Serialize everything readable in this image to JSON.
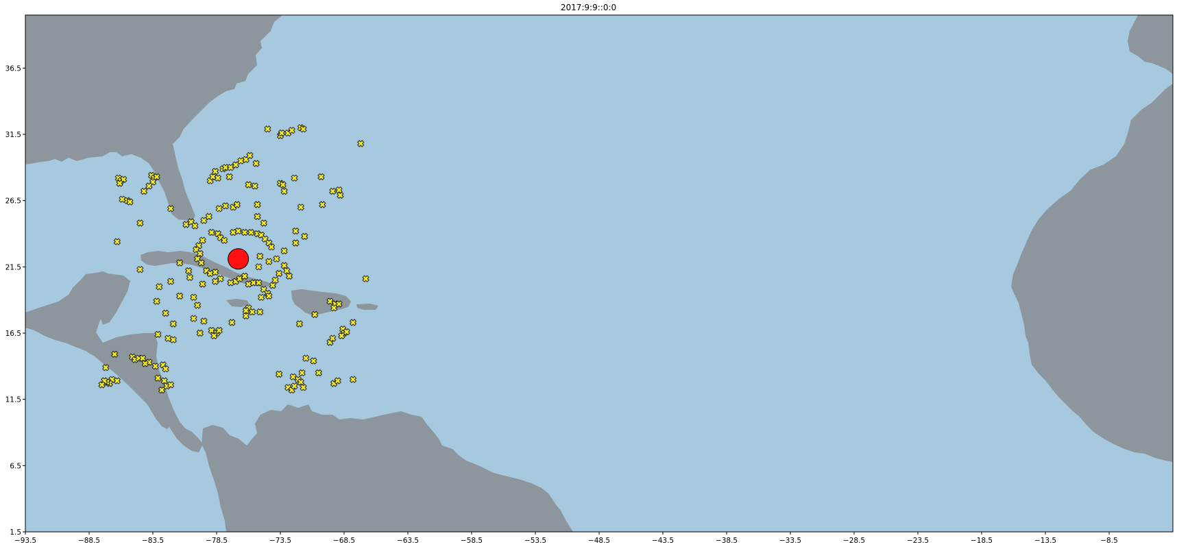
{
  "title": "2017:9:9::0:0",
  "colors": {
    "ocean": "#a6c9df",
    "land": "#8c969c",
    "marker_fill": "#f0ea2a",
    "marker_edge": "#222222",
    "storm": "#ff1111"
  },
  "chart_data": {
    "type": "scatter",
    "title": "2017:9:9::0:0",
    "xlabel": "",
    "ylabel": "",
    "xlim": [
      -93.5,
      -3.5
    ],
    "ylim": [
      1.5,
      40.5
    ],
    "x_ticks": [
      -93.5,
      -88.5,
      -83.5,
      -78.5,
      -73.5,
      -68.5,
      -63.5,
      -58.5,
      -53.5,
      -48.5,
      -43.5,
      -38.5,
      -33.5,
      -28.5,
      -23.5,
      -18.5,
      -13.5,
      -8.5
    ],
    "y_ticks": [
      1.5,
      6.5,
      11.5,
      16.5,
      21.5,
      26.5,
      31.5,
      36.5
    ],
    "grid": false,
    "storm_center": {
      "lon": -76.8,
      "lat": 22.1
    },
    "series": [
      {
        "marker": "x-filled",
        "points": [
          [
            -74.5,
            31.9
          ],
          [
            -73.5,
            31.4
          ],
          [
            -73.4,
            31.6
          ],
          [
            -72.9,
            31.6
          ],
          [
            -72.6,
            31.8
          ],
          [
            -71.9,
            32.0
          ],
          [
            -71.7,
            31.9
          ],
          [
            -67.2,
            30.8
          ],
          [
            -86.2,
            28.2
          ],
          [
            -86.0,
            28.0
          ],
          [
            -85.8,
            28.1
          ],
          [
            -86.1,
            27.8
          ],
          [
            -83.6,
            28.4
          ],
          [
            -83.4,
            28.2
          ],
          [
            -83.2,
            28.3
          ],
          [
            -83.5,
            27.9
          ],
          [
            -83.8,
            27.6
          ],
          [
            -84.2,
            27.2
          ],
          [
            -79.0,
            28.0
          ],
          [
            -78.8,
            28.3
          ],
          [
            -78.4,
            28.2
          ],
          [
            -78.6,
            28.7
          ],
          [
            -78.0,
            28.9
          ],
          [
            -77.8,
            29.0
          ],
          [
            -77.4,
            29.0
          ],
          [
            -77.0,
            29.2
          ],
          [
            -76.6,
            29.5
          ],
          [
            -76.2,
            29.6
          ],
          [
            -75.9,
            29.9
          ],
          [
            -75.4,
            29.3
          ],
          [
            -77.5,
            28.3
          ],
          [
            -76.0,
            27.7
          ],
          [
            -75.5,
            27.6
          ],
          [
            -73.5,
            27.8
          ],
          [
            -73.3,
            27.7
          ],
          [
            -73.2,
            27.2
          ],
          [
            -72.4,
            28.2
          ],
          [
            -70.3,
            28.3
          ],
          [
            -69.4,
            27.2
          ],
          [
            -68.9,
            27.3
          ],
          [
            -68.8,
            26.9
          ],
          [
            -85.9,
            26.6
          ],
          [
            -85.5,
            26.5
          ],
          [
            -85.3,
            26.4
          ],
          [
            -82.1,
            25.9
          ],
          [
            -79.5,
            25.0
          ],
          [
            -79.1,
            25.3
          ],
          [
            -78.3,
            25.9
          ],
          [
            -77.8,
            26.1
          ],
          [
            -77.2,
            26.0
          ],
          [
            -76.9,
            26.2
          ],
          [
            -75.3,
            26.2
          ],
          [
            -71.9,
            26.0
          ],
          [
            -70.2,
            26.2
          ],
          [
            -84.5,
            24.8
          ],
          [
            -80.9,
            24.7
          ],
          [
            -80.5,
            24.9
          ],
          [
            -80.2,
            24.6
          ],
          [
            -78.9,
            24.1
          ],
          [
            -78.4,
            24.0
          ],
          [
            -78.2,
            23.7
          ],
          [
            -77.9,
            23.5
          ],
          [
            -77.2,
            24.1
          ],
          [
            -76.8,
            24.2
          ],
          [
            -76.3,
            24.1
          ],
          [
            -75.8,
            24.1
          ],
          [
            -75.3,
            24.0
          ],
          [
            -75.0,
            23.9
          ],
          [
            -74.7,
            23.6
          ],
          [
            -74.4,
            23.3
          ],
          [
            -74.2,
            23.0
          ],
          [
            -75.3,
            25.3
          ],
          [
            -74.8,
            24.8
          ],
          [
            -72.3,
            24.2
          ],
          [
            -71.6,
            23.8
          ],
          [
            -72.3,
            23.3
          ],
          [
            -73.2,
            22.7
          ],
          [
            -73.8,
            22.1
          ],
          [
            -74.4,
            21.9
          ],
          [
            -75.1,
            22.3
          ],
          [
            -79.6,
            23.5
          ],
          [
            -79.9,
            23.1
          ],
          [
            -80.1,
            22.8
          ],
          [
            -79.8,
            22.5
          ],
          [
            -80.0,
            22.1
          ],
          [
            -79.7,
            21.8
          ],
          [
            -79.3,
            21.2
          ],
          [
            -79.0,
            21.0
          ],
          [
            -78.6,
            21.1
          ],
          [
            -78.2,
            20.6
          ],
          [
            -78.6,
            20.4
          ],
          [
            -77.4,
            20.3
          ],
          [
            -77.0,
            20.4
          ],
          [
            -76.7,
            20.6
          ],
          [
            -76.3,
            20.8
          ],
          [
            -76.0,
            20.2
          ],
          [
            -75.6,
            20.3
          ],
          [
            -75.2,
            20.3
          ],
          [
            -74.8,
            19.8
          ],
          [
            -74.5,
            19.5
          ],
          [
            -74.4,
            19.3
          ],
          [
            -75.0,
            19.2
          ],
          [
            -74.1,
            20.1
          ],
          [
            -73.9,
            20.5
          ],
          [
            -73.6,
            21.0
          ],
          [
            -73.2,
            21.6
          ],
          [
            -73.0,
            21.2
          ],
          [
            -72.8,
            20.8
          ],
          [
            -75.2,
            21.5
          ],
          [
            -86.3,
            23.4
          ],
          [
            -84.5,
            21.3
          ],
          [
            -81.4,
            21.8
          ],
          [
            -80.7,
            21.2
          ],
          [
            -80.6,
            20.7
          ],
          [
            -79.6,
            20.2
          ],
          [
            -82.1,
            20.4
          ],
          [
            -83.0,
            20.0
          ],
          [
            -83.2,
            18.9
          ],
          [
            -81.4,
            19.3
          ],
          [
            -80.3,
            19.2
          ],
          [
            -80.0,
            18.6
          ],
          [
            -80.3,
            17.6
          ],
          [
            -79.5,
            17.4
          ],
          [
            -79.8,
            16.5
          ],
          [
            -78.9,
            16.7
          ],
          [
            -78.5,
            16.5
          ],
          [
            -78.3,
            16.7
          ],
          [
            -78.7,
            16.3
          ],
          [
            -77.3,
            17.3
          ],
          [
            -76.2,
            17.8
          ],
          [
            -75.1,
            18.1
          ],
          [
            -76.0,
            18.4
          ],
          [
            -75.7,
            18.1
          ],
          [
            -76.2,
            18.2
          ],
          [
            -82.5,
            18.0
          ],
          [
            -81.9,
            17.2
          ],
          [
            -83.1,
            16.4
          ],
          [
            -82.3,
            16.1
          ],
          [
            -81.9,
            16.0
          ],
          [
            -72.0,
            17.2
          ],
          [
            -70.8,
            17.9
          ],
          [
            -69.6,
            18.9
          ],
          [
            -69.2,
            18.7
          ],
          [
            -69.3,
            18.4
          ],
          [
            -68.9,
            18.7
          ],
          [
            -68.6,
            16.8
          ],
          [
            -68.5,
            16.5
          ],
          [
            -68.3,
            16.6
          ],
          [
            -67.8,
            17.3
          ],
          [
            -68.7,
            16.3
          ],
          [
            -69.6,
            15.8
          ],
          [
            -69.4,
            16.1
          ],
          [
            -86.5,
            14.9
          ],
          [
            -85.1,
            14.7
          ],
          [
            -84.9,
            14.5
          ],
          [
            -84.6,
            14.6
          ],
          [
            -84.3,
            14.6
          ],
          [
            -83.8,
            14.3
          ],
          [
            -84.1,
            14.2
          ],
          [
            -83.3,
            14.0
          ],
          [
            -82.7,
            14.1
          ],
          [
            -82.5,
            13.8
          ],
          [
            -87.2,
            13.9
          ],
          [
            -86.7,
            13.0
          ],
          [
            -86.9,
            12.7
          ],
          [
            -87.1,
            12.8
          ],
          [
            -87.3,
            12.9
          ],
          [
            -87.5,
            12.6
          ],
          [
            -86.3,
            12.9
          ],
          [
            -83.1,
            13.1
          ],
          [
            -82.6,
            12.9
          ],
          [
            -82.4,
            12.5
          ],
          [
            -82.8,
            12.2
          ],
          [
            -82.1,
            12.6
          ],
          [
            -73.6,
            13.4
          ],
          [
            -72.5,
            13.2
          ],
          [
            -72.1,
            13.0
          ],
          [
            -71.8,
            13.5
          ],
          [
            -71.5,
            14.6
          ],
          [
            -70.9,
            14.4
          ],
          [
            -70.5,
            13.5
          ],
          [
            -69.3,
            12.7
          ],
          [
            -69.0,
            12.9
          ],
          [
            -67.8,
            13.0
          ],
          [
            -72.9,
            12.4
          ],
          [
            -72.6,
            12.2
          ],
          [
            -72.4,
            12.5
          ],
          [
            -71.9,
            12.8
          ],
          [
            -71.7,
            12.4
          ],
          [
            -66.8,
            20.6
          ],
          [
            -76.6,
            22.4
          ]
        ]
      }
    ]
  }
}
